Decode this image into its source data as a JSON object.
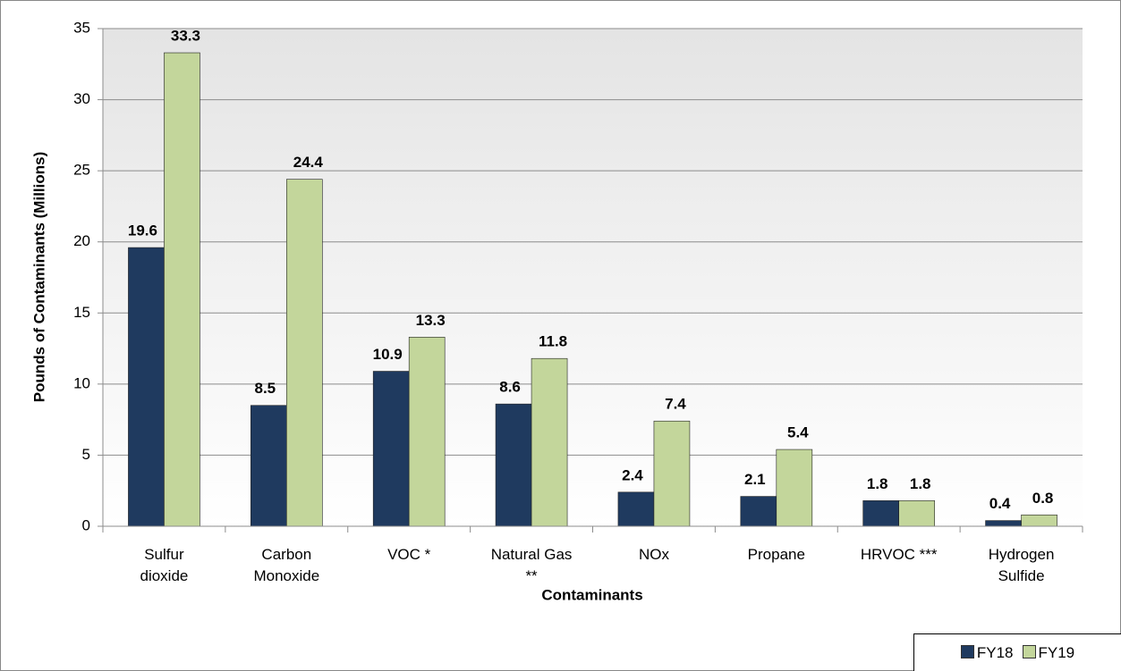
{
  "chart_data": {
    "type": "bar",
    "x_label": "Contaminants",
    "y_label": "Pounds of Contaminants (Millions)",
    "categories": [
      "Sulfur dioxide",
      "Carbon Monoxide",
      "VOC *",
      "Natural Gas **",
      "NOx",
      "Propane",
      "HRVOC ***",
      "Hydrogen Sulfide"
    ],
    "series": [
      {
        "name": "FY18",
        "color": "#1f3a5f",
        "values": [
          19.6,
          8.5,
          10.9,
          8.6,
          2.4,
          2.1,
          1.8,
          0.4
        ]
      },
      {
        "name": "FY19",
        "color": "#c3d69b",
        "values": [
          33.3,
          24.4,
          13.3,
          11.8,
          7.4,
          5.4,
          1.8,
          0.8
        ]
      }
    ],
    "ylim": [
      0,
      35
    ],
    "yticks": [
      0,
      5,
      10,
      15,
      20,
      25,
      30,
      35
    ],
    "grid": true,
    "legend": "bottom-right"
  }
}
